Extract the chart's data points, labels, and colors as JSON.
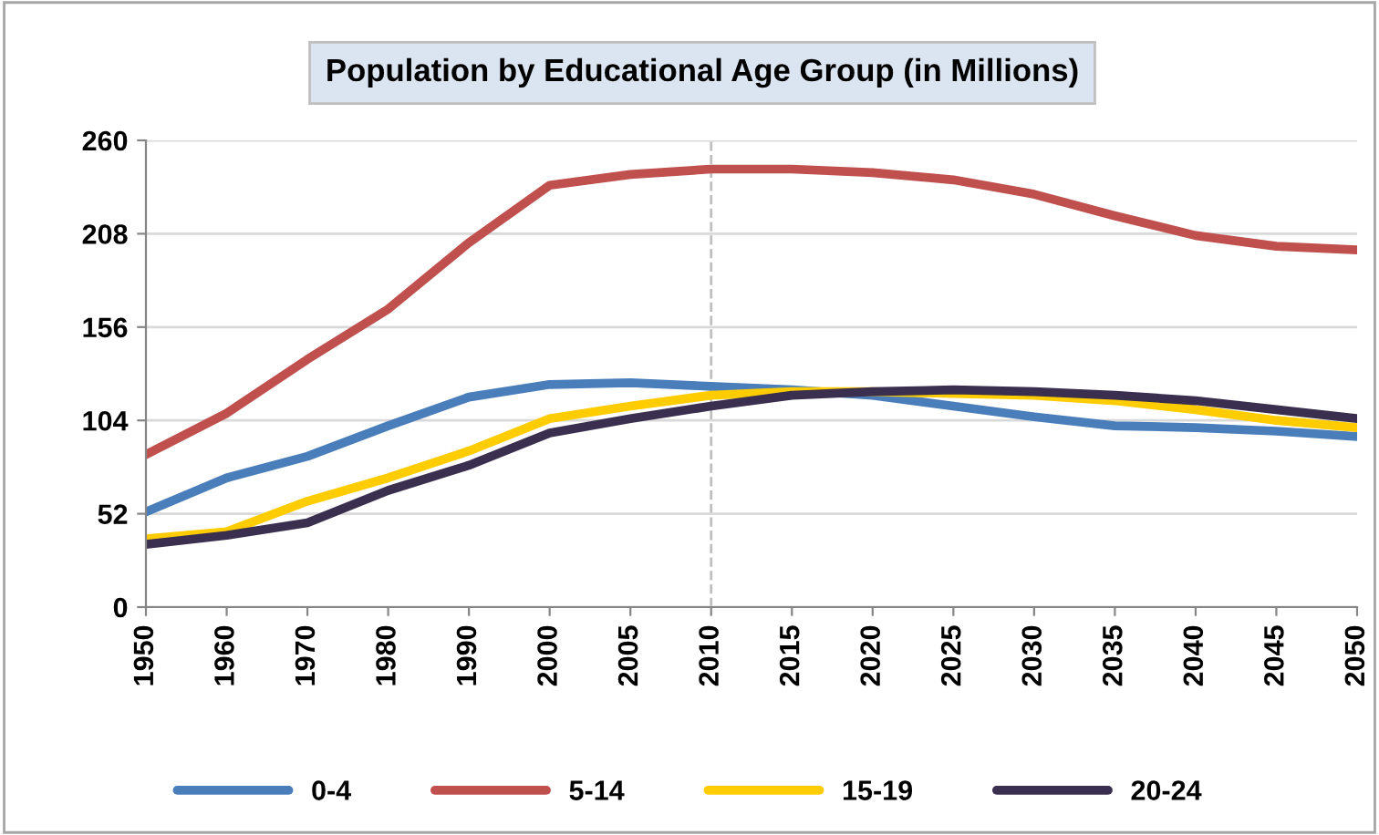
{
  "chart_data": {
    "type": "line",
    "title": "Population by Educational Age Group (in Millions)",
    "categories": [
      "1950",
      "1960",
      "1970",
      "1980",
      "1990",
      "2000",
      "2005",
      "2010",
      "2015",
      "2020",
      "2025",
      "2030",
      "2035",
      "2040",
      "2045",
      "2050"
    ],
    "series": [
      {
        "name": "0-4",
        "color": "#4a7ebb",
        "values": [
          53,
          72,
          84,
          101,
          117,
          124,
          125,
          123,
          121,
          118,
          112,
          106,
          101,
          100,
          98,
          95
        ]
      },
      {
        "name": "5-14",
        "color": "#c0504d",
        "values": [
          85,
          108,
          138,
          166,
          203,
          235,
          241,
          244,
          244,
          242,
          238,
          230,
          218,
          207,
          201,
          199
        ]
      },
      {
        "name": "15-19",
        "color": "#ffcc00",
        "values": [
          38,
          42,
          59,
          72,
          87,
          105,
          112,
          118,
          120,
          120,
          119,
          118,
          115,
          110,
          104,
          100
        ]
      },
      {
        "name": "20-24",
        "color": "#3b2f4f",
        "values": [
          35,
          40,
          47,
          65,
          79,
          97,
          105,
          112,
          118,
          120,
          121,
          120,
          118,
          115,
          110,
          105
        ]
      }
    ],
    "ylim": [
      0,
      260
    ],
    "yticks": [
      0,
      52,
      104,
      156,
      208,
      260
    ],
    "grid": "y",
    "legend": "bottom",
    "ref_lines": [
      {
        "axis": "x",
        "value": "2010",
        "color": "#bfbfbf",
        "line_style": "dashed"
      }
    ],
    "marker": "none",
    "line_style": "solid"
  }
}
